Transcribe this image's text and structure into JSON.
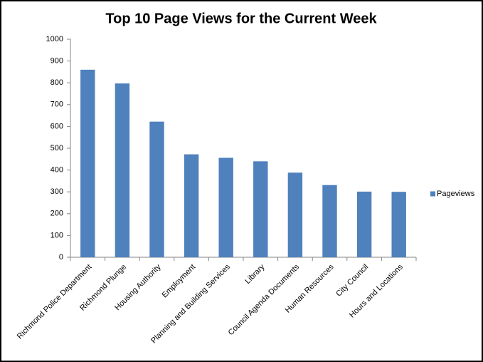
{
  "chart_data": {
    "type": "bar",
    "title": "Top 10 Page Views for the Current Week",
    "categories": [
      "Richmond Police Department",
      "Richmond Plunge",
      "Housing Authority",
      "Employment",
      "Planning and Building Services",
      "Library",
      "Council Agenda Documents",
      "Human Resources",
      "City Council",
      "Hours and Locations"
    ],
    "series": [
      {
        "name": "Pageviews",
        "color": "#4f81bd",
        "values": [
          860,
          797,
          622,
          472,
          456,
          440,
          388,
          331,
          301,
          300
        ]
      }
    ],
    "ylim": [
      0,
      1000
    ],
    "yticks": [
      0,
      100,
      200,
      300,
      400,
      500,
      600,
      700,
      800,
      900,
      1000
    ],
    "grid": false,
    "legend": "right"
  }
}
